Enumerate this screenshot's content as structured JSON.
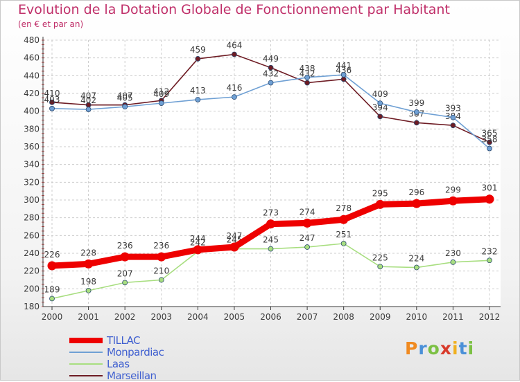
{
  "header": {
    "title": "Evolution de la Dotation Globale de Fonctionnement par Habitant",
    "subtitle": "(en € et par an)"
  },
  "colors": {
    "title": "#c0306a",
    "axis": "#3a3a3a",
    "grid": "#cccccc",
    "legend_text": "#4060d0"
  },
  "chart_data": {
    "type": "line",
    "title": "Evolution de la Dotation Globale de Fonctionnement par Habitant",
    "subtitle": "(en € et par an)",
    "xlabel": "",
    "ylabel": "",
    "ylim": [
      180,
      480
    ],
    "yticks": [
      180,
      200,
      220,
      240,
      260,
      280,
      300,
      320,
      340,
      360,
      380,
      400,
      420,
      440,
      460,
      480
    ],
    "grid": true,
    "legend_position": "bottom-left",
    "categories": [
      "2000",
      "2001",
      "2002",
      "2003",
      "2004",
      "2005",
      "2006",
      "2007",
      "2008",
      "2009",
      "2010",
      "2011",
      "2012"
    ],
    "series": [
      {
        "name": "Marseillan",
        "color": "#6e1c24",
        "values": [
          410,
          407,
          407,
          412,
          459,
          464,
          449,
          432,
          436,
          394,
          387,
          384,
          365
        ],
        "labels": [
          "410",
          "407",
          "407",
          "412",
          "459",
          "464",
          "449",
          "432",
          "436",
          "394",
          "387",
          "384",
          "365"
        ]
      },
      {
        "name": "Monpardiac",
        "color": "#6fa0d4",
        "values": [
          403,
          402,
          405,
          409,
          413,
          416,
          432,
          438,
          441,
          409,
          399,
          393,
          358
        ],
        "labels": [
          "403",
          "402",
          "405",
          "409",
          "413",
          "416",
          "432",
          "438",
          "441",
          "409",
          "399",
          "393",
          "358"
        ]
      },
      {
        "name": "Laas",
        "color": "#a8de80",
        "values": [
          189,
          198,
          207,
          210,
          242,
          245,
          245,
          247,
          251,
          225,
          224,
          230,
          232
        ],
        "labels": [
          "189",
          "198",
          "207",
          "210",
          "242",
          "245",
          "245",
          "247",
          "251",
          "225",
          "224",
          "230",
          "232"
        ]
      },
      {
        "name": "TILLAC",
        "color": "#ee0000",
        "values": [
          226,
          228,
          236,
          236,
          244,
          247,
          273,
          274,
          278,
          295,
          296,
          299,
          301
        ],
        "labels": [
          "226",
          "228",
          "236",
          "236",
          "244",
          "247",
          "273",
          "274",
          "278",
          "295",
          "296",
          "299",
          "301"
        ]
      }
    ]
  },
  "legend": {
    "items": [
      {
        "label": "TILLAC",
        "color": "#ee0000",
        "line": 8
      },
      {
        "label": "Monpardiac",
        "color": "#6fa0d4",
        "line": 2
      },
      {
        "label": "Laas",
        "color": "#a8de80",
        "line": 2
      },
      {
        "label": "Marseillan",
        "color": "#6e1c24",
        "line": 2
      }
    ]
  },
  "logo": {
    "text": "Proxiti",
    "colors": [
      "#f08a20",
      "#4a90d8",
      "#7bc043",
      "#d83a2a",
      "#f0b020",
      "#4a90d8",
      "#7bc043"
    ]
  }
}
